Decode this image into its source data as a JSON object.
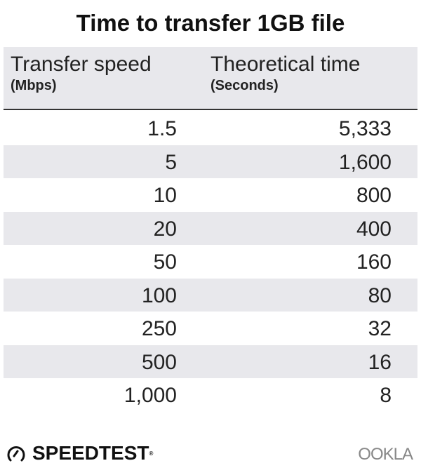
{
  "chart_data": {
    "type": "table",
    "title": "Time to transfer 1GB file",
    "columns": [
      {
        "label": "Transfer speed",
        "unit": "(Mbps)"
      },
      {
        "label": "Theoretical time",
        "unit": "(Seconds)"
      }
    ],
    "rows": [
      [
        "1.5",
        "5,333"
      ],
      [
        "5",
        "1,600"
      ],
      [
        "10",
        "800"
      ],
      [
        "20",
        "400"
      ],
      [
        "50",
        "160"
      ],
      [
        "100",
        "80"
      ],
      [
        "250",
        "32"
      ],
      [
        "500",
        "16"
      ],
      [
        "1,000",
        "8"
      ]
    ],
    "colors": {
      "header_bg": "#e8e8ec",
      "alt_row_bg": "#e8e8ec"
    }
  },
  "footer": {
    "speedtest": "SPEEDTEST",
    "ookla": "OOKLA"
  }
}
